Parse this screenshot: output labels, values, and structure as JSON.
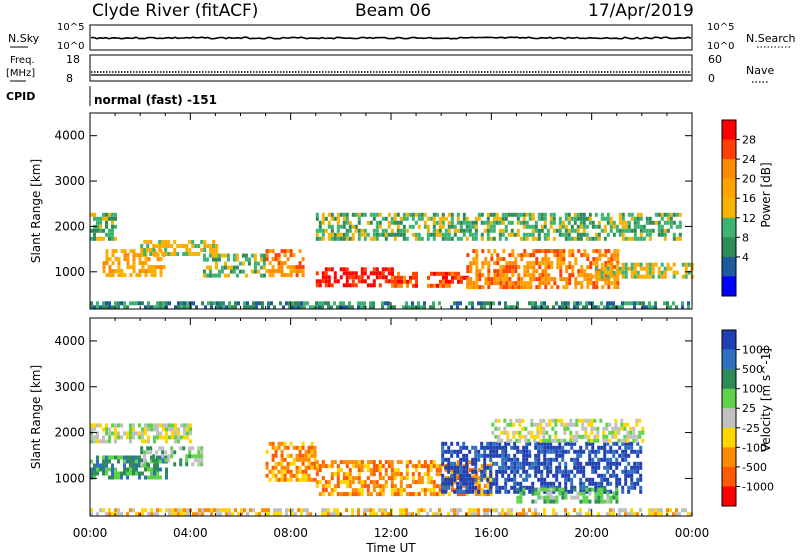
{
  "header": {
    "station": "Clyde River (fitACF)",
    "beam": "Beam 06",
    "date": "17/Apr/2019"
  },
  "summary_panel": {
    "nsky_label": "N.Sky",
    "nsearch_label": "N.Search",
    "nsky_ticks": [
      "10^5",
      "10^0"
    ],
    "nsearch_ticks": [
      "10^5",
      "10^0"
    ],
    "freq_label_1": "Freq.",
    "freq_label_2": "[MHz]",
    "freq_ticks": [
      "18",
      "8"
    ],
    "nave_label": "Nave",
    "nave_ticks": [
      "60",
      "0"
    ],
    "cpid_label": "CPID",
    "cpid_value": "normal (fast) -151"
  },
  "colorbars": {
    "power": {
      "title": "Power [dB]",
      "labels": [
        "28",
        "24",
        "20",
        "16",
        "12",
        "8",
        "4"
      ],
      "colors": [
        "#ff0000",
        "#ff4000",
        "#ff8c00",
        "#ffa500",
        "#f6b300",
        "#3cb371",
        "#2e8b57",
        "#1e5a9e",
        "#0000ff"
      ]
    },
    "velocity": {
      "title": "Velocity [m s^-1]",
      "labels": [
        "1000",
        "500",
        "100",
        "25",
        "-25",
        "-100",
        "-500",
        "-1000"
      ],
      "colors": [
        "#1f3fb3",
        "#2f6fbf",
        "#2e8b57",
        "#5fd24a",
        "#c0c0c0",
        "#ffd700",
        "#ff8c00",
        "#ff5a00",
        "#ff0000"
      ]
    }
  },
  "chart_data": [
    {
      "type": "heatmap",
      "title": "Power [dB]",
      "ylabel": "Slant Range [km]",
      "xlabel": "Time UT",
      "x_ticks": [
        "00:00",
        "04:00",
        "08:00",
        "12:00",
        "16:00",
        "20:00",
        "00:00"
      ],
      "y_ticks": [
        1000,
        2000,
        3000,
        4000
      ],
      "xlim": [
        0,
        24
      ],
      "ylim": [
        180,
        4500
      ],
      "bands": [
        {
          "t": [
            0.0,
            1.0
          ],
          "r": [
            1700,
            2300
          ],
          "level": 3
        },
        {
          "t": [
            0.5,
            3.0
          ],
          "r": [
            900,
            1500
          ],
          "level": 5
        },
        {
          "t": [
            2.0,
            5.0
          ],
          "r": [
            1400,
            1700
          ],
          "level": 4
        },
        {
          "t": [
            4.5,
            7.0
          ],
          "r": [
            900,
            1400
          ],
          "level": 3
        },
        {
          "t": [
            7.0,
            8.5
          ],
          "r": [
            900,
            1500
          ],
          "level": 6
        },
        {
          "t": [
            9.0,
            12.0
          ],
          "r": [
            700,
            1100
          ],
          "level": 8
        },
        {
          "t": [
            12.0,
            15.0
          ],
          "r": [
            700,
            1000
          ],
          "level": 7
        },
        {
          "t": [
            15.0,
            21.0
          ],
          "r": [
            700,
            1500
          ],
          "level": 6
        },
        {
          "t": [
            9.0,
            23.5
          ],
          "r": [
            1700,
            2300
          ],
          "level": 3
        },
        {
          "t": [
            20.0,
            24.0
          ],
          "r": [
            900,
            1200
          ],
          "level": 4
        },
        {
          "t": [
            0.0,
            24.0
          ],
          "r": [
            180,
            350
          ],
          "level": 2
        }
      ]
    },
    {
      "type": "heatmap",
      "title": "Velocity [m s^-1]",
      "ylabel": "Slant Range [km]",
      "xlabel": "Time UT",
      "x_ticks": [
        "00:00",
        "04:00",
        "08:00",
        "12:00",
        "16:00",
        "20:00",
        "00:00"
      ],
      "y_ticks": [
        1000,
        2000,
        3000,
        4000
      ],
      "xlim": [
        0,
        24
      ],
      "ylim": [
        180,
        4500
      ],
      "bands": [
        {
          "t": [
            0.0,
            4.0
          ],
          "r": [
            1800,
            2200
          ],
          "level": 4
        },
        {
          "t": [
            0.0,
            3.0
          ],
          "r": [
            1000,
            1500
          ],
          "level": 2
        },
        {
          "t": [
            2.0,
            4.5
          ],
          "r": [
            1300,
            1700
          ],
          "level": 3
        },
        {
          "t": [
            7.0,
            9.0
          ],
          "r": [
            1000,
            1800
          ],
          "level": 6
        },
        {
          "t": [
            9.0,
            16.0
          ],
          "r": [
            700,
            1400
          ],
          "level": 6
        },
        {
          "t": [
            14.0,
            22.0
          ],
          "r": [
            700,
            1800
          ],
          "level": 0
        },
        {
          "t": [
            16.0,
            22.0
          ],
          "r": [
            1800,
            2300
          ],
          "level": 4
        },
        {
          "t": [
            17.0,
            21.0
          ],
          "r": [
            500,
            800
          ],
          "level": 3
        },
        {
          "t": [
            0.0,
            24.0
          ],
          "r": [
            180,
            350
          ],
          "level": 5
        }
      ]
    }
  ],
  "x_axis": {
    "ticks": [
      "00:00",
      "04:00",
      "08:00",
      "12:00",
      "16:00",
      "20:00",
      "00:00"
    ],
    "label": "Time UT"
  }
}
